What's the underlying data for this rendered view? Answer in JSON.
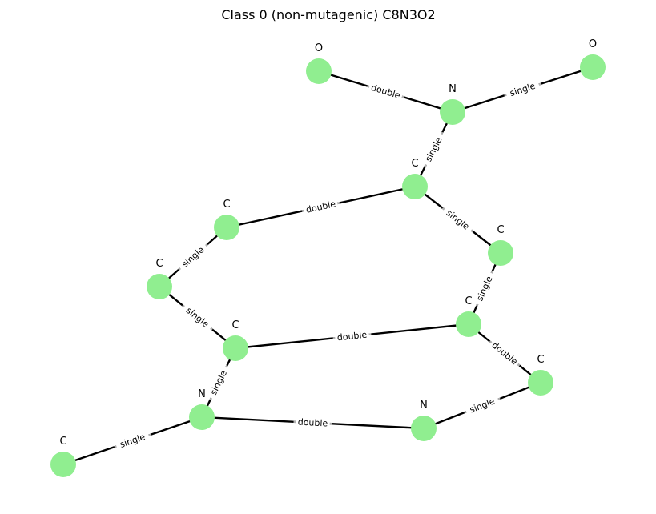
{
  "title": "Class 0 (non-mutagenic) C8N3O2",
  "colors": {
    "node": "#90ee90",
    "edge": "#000000",
    "edge_label_bg": "#b0b0b0"
  },
  "nodes": [
    {
      "id": "o1",
      "label": "O"
    },
    {
      "id": "o2",
      "label": "O"
    },
    {
      "id": "n1",
      "label": "N"
    },
    {
      "id": "c1",
      "label": "C"
    },
    {
      "id": "c2",
      "label": "C"
    },
    {
      "id": "c3",
      "label": "C"
    },
    {
      "id": "c4",
      "label": "C"
    },
    {
      "id": "c5",
      "label": "C"
    },
    {
      "id": "c6",
      "label": "C"
    },
    {
      "id": "c7",
      "label": "C"
    },
    {
      "id": "n2",
      "label": "N"
    },
    {
      "id": "n3",
      "label": "N"
    },
    {
      "id": "c8",
      "label": "C"
    }
  ],
  "edges": [
    {
      "source": "o1",
      "target": "n1",
      "label": "double"
    },
    {
      "source": "n1",
      "target": "o2",
      "label": "single"
    },
    {
      "source": "n1",
      "target": "c1",
      "label": "single"
    },
    {
      "source": "c1",
      "target": "c2",
      "label": "double"
    },
    {
      "source": "c1",
      "target": "c3",
      "label": "single"
    },
    {
      "source": "c2",
      "target": "c4",
      "label": "single"
    },
    {
      "source": "c3",
      "target": "c6",
      "label": "single"
    },
    {
      "source": "c4",
      "target": "c5",
      "label": "single"
    },
    {
      "source": "c5",
      "target": "c6",
      "label": "double"
    },
    {
      "source": "c6",
      "target": "c7",
      "label": "double"
    },
    {
      "source": "c5",
      "target": "n2",
      "label": "single"
    },
    {
      "source": "c7",
      "target": "n3",
      "label": "single"
    },
    {
      "source": "n2",
      "target": "n3",
      "label": "double"
    },
    {
      "source": "n2",
      "target": "c8",
      "label": "single"
    }
  ]
}
